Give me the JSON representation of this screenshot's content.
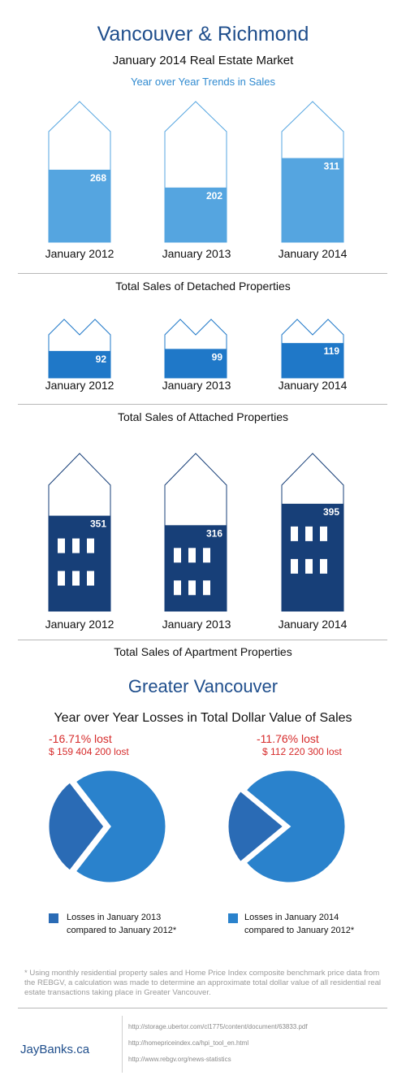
{
  "header": {
    "title": "Vancouver & Richmond",
    "subtitle": "January 2014 Real Estate Market",
    "subsub": "Year over Year Trends in Sales"
  },
  "colors": {
    "accent": "#1f4e8c",
    "detached": "#55a5e0",
    "attached": "#1f78c8",
    "apartment": "#173f78",
    "loss": "#d62b2b"
  },
  "chart_data": [
    {
      "type": "bar",
      "title": "Total Sales of Detached Properties",
      "categories": [
        "January 2012",
        "January 2013",
        "January 2014"
      ],
      "values": [
        268,
        202,
        311
      ],
      "ylim": [
        0,
        520
      ],
      "icon": "house"
    },
    {
      "type": "bar",
      "title": "Total Sales of Attached Properties",
      "categories": [
        "January 2012",
        "January 2013",
        "January 2014"
      ],
      "values": [
        92,
        99,
        119
      ],
      "ylim": [
        0,
        200
      ],
      "icon": "townhouse"
    },
    {
      "type": "bar",
      "title": "Total Sales of Apartment Properties",
      "categories": [
        "January 2012",
        "January 2013",
        "January 2014"
      ],
      "values": [
        351,
        316,
        395
      ],
      "ylim": [
        0,
        580
      ],
      "icon": "apartment"
    },
    {
      "type": "pie",
      "title": "Year over Year Losses in Total Dollar Value of Sales",
      "pies": [
        {
          "pct_label": "-16.71% lost",
          "amount_label": "$ 159 404 200 lost",
          "fraction": 0.29,
          "legend": [
            "Losses in January 2013",
            "compared to January 2012*"
          ]
        },
        {
          "pct_label": "-11.76% lost",
          "amount_label": "$ 112 220 300 lost",
          "fraction": 0.22,
          "legend": [
            "Losses in January 2014",
            "compared to January 2012*"
          ]
        }
      ]
    }
  ],
  "section2_title": "Greater Vancouver",
  "footnote": "* Using monthly residential property sales and Home Price Index composite benchmark price data from the REBGV, a calculation was made to determine an approximate total dollar value of all residential real estate transactions taking place in Greater Vancouver.",
  "brand": "JayBanks.ca",
  "links": [
    "http://storage.ubertor.com/cl1775/content/document/63833.pdf",
    "http://homepriceindex.ca/hpi_tool_en.html",
    "http://www.rebgv.org/news-statistics"
  ]
}
